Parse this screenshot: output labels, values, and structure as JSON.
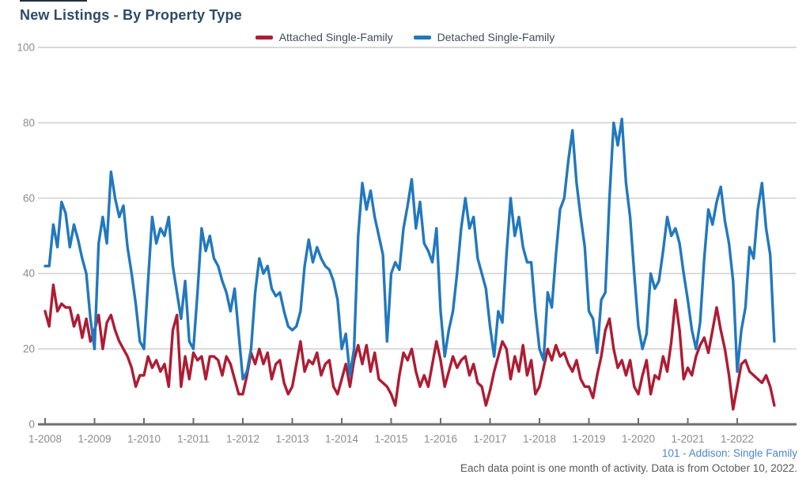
{
  "page": {
    "title": "New Listings - By Property Type"
  },
  "legend": {
    "items": [
      {
        "label": "Attached Single-Family",
        "color": "#ae1c33"
      },
      {
        "label": "Detached Single-Family",
        "color": "#2278be"
      }
    ]
  },
  "footer": {
    "source": "101 - Addison: Single Family",
    "note": "Each data point is one month of activity. Data is from October 10, 2022."
  },
  "colors": {
    "title": "#2d4a68",
    "legend_text": "#3f4d5e",
    "axis_text": "#8c8c8c",
    "gridline": "#cccccc",
    "axis_line": "#6e6e6e",
    "attached": "#ae1c33",
    "detached": "#2278be",
    "footer_source": "#4e87c5",
    "footer_note": "#595959"
  },
  "chart_data": {
    "type": "line",
    "title": "New Listings - By Property Type",
    "x_start": "1-2008",
    "x_end": "10-2022",
    "x_frequency": "monthly",
    "x_tick_labels": [
      "1-2008",
      "1-2009",
      "1-2010",
      "1-2011",
      "1-2012",
      "1-2013",
      "1-2014",
      "1-2015",
      "1-2016",
      "1-2017",
      "1-2018",
      "1-2019",
      "1-2020",
      "1-2021",
      "1-2022"
    ],
    "y_ticks": [
      0,
      20,
      40,
      60,
      80,
      100
    ],
    "ylim": [
      0,
      100
    ],
    "grid": "horizontal",
    "legend_position": "top",
    "series": [
      {
        "name": "Attached Single-Family",
        "color": "#ae1c33",
        "values": [
          30,
          26,
          37,
          30,
          32,
          31,
          31,
          26,
          29,
          23,
          28,
          22,
          25,
          29,
          20,
          27,
          29,
          25,
          22,
          20,
          18,
          15,
          10,
          13,
          13,
          18,
          15,
          17,
          14,
          16,
          10,
          25,
          29,
          10,
          18,
          12,
          19,
          17,
          18,
          12,
          18,
          18,
          17,
          13,
          18,
          16,
          12,
          8,
          8,
          13,
          19,
          16,
          20,
          16,
          19,
          12,
          16,
          17,
          11,
          8,
          10,
          16,
          22,
          14,
          17,
          16,
          19,
          13,
          16,
          17,
          10,
          8,
          12,
          16,
          10,
          17,
          21,
          16,
          21,
          14,
          19,
          12,
          11,
          10,
          8,
          5,
          13,
          19,
          17,
          20,
          14,
          10,
          13,
          10,
          16,
          22,
          17,
          10,
          14,
          18,
          15,
          17,
          18,
          13,
          16,
          11,
          10,
          5,
          9,
          14,
          18,
          22,
          20,
          12,
          18,
          14,
          21,
          13,
          17,
          8,
          10,
          15,
          20,
          17,
          21,
          18,
          19,
          16,
          14,
          17,
          12,
          10,
          10,
          7,
          13,
          18,
          25,
          28,
          20,
          15,
          17,
          13,
          17,
          10,
          8,
          13,
          17,
          8,
          13,
          12,
          18,
          14,
          22,
          33,
          25,
          12,
          15,
          13,
          18,
          21,
          23,
          19,
          25,
          31,
          25,
          20,
          13,
          4,
          10,
          16,
          17,
          14,
          13,
          12,
          11,
          13,
          10,
          5
        ]
      },
      {
        "name": "Detached Single-Family",
        "color": "#2278be",
        "values": [
          42,
          42,
          53,
          47,
          59,
          56,
          47,
          53,
          49,
          44,
          40,
          28,
          20,
          48,
          55,
          48,
          67,
          60,
          55,
          58,
          47,
          40,
          32,
          22,
          20,
          38,
          55,
          48,
          52,
          50,
          55,
          42,
          35,
          28,
          38,
          22,
          20,
          35,
          52,
          46,
          50,
          44,
          42,
          38,
          35,
          30,
          36,
          24,
          12,
          14,
          20,
          35,
          44,
          40,
          42,
          36,
          34,
          35,
          30,
          26,
          25,
          26,
          30,
          42,
          49,
          43,
          47,
          44,
          42,
          41,
          38,
          33,
          20,
          24,
          13,
          20,
          50,
          64,
          57,
          62,
          55,
          50,
          45,
          22,
          40,
          43,
          41,
          52,
          58,
          65,
          52,
          59,
          48,
          46,
          43,
          52,
          30,
          18,
          25,
          30,
          40,
          52,
          60,
          52,
          55,
          44,
          40,
          36,
          26,
          18,
          30,
          27,
          45,
          60,
          50,
          55,
          47,
          43,
          43,
          30,
          20,
          17,
          35,
          31,
          45,
          57,
          60,
          70,
          78,
          64,
          55,
          47,
          30,
          28,
          19,
          33,
          35,
          60,
          80,
          74,
          81,
          64,
          55,
          40,
          26,
          20,
          24,
          40,
          36,
          38,
          46,
          55,
          50,
          52,
          48,
          40,
          33,
          25,
          20,
          27,
          44,
          57,
          53,
          59,
          63,
          54,
          48,
          38,
          14,
          25,
          31,
          47,
          44,
          57,
          64,
          52,
          45,
          22
        ]
      }
    ]
  }
}
